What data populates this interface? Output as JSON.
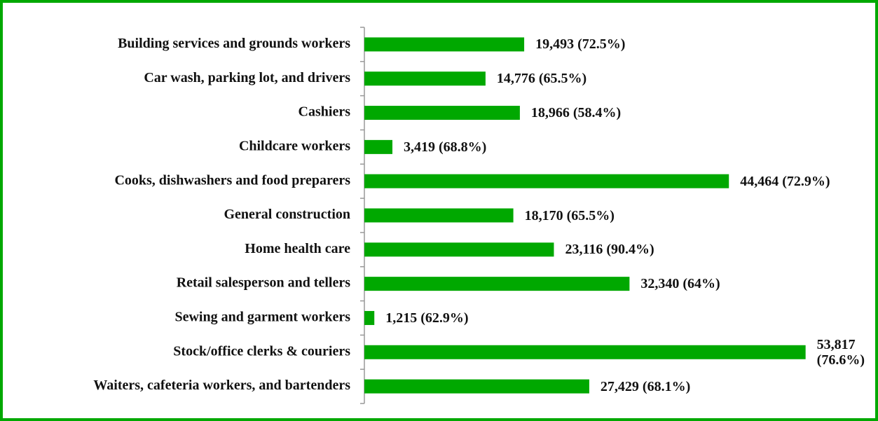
{
  "chart_data": {
    "type": "bar",
    "orientation": "horizontal",
    "categories": [
      "Building services and grounds workers",
      "Car wash, parking lot, and drivers",
      "Cashiers",
      "Childcare workers",
      "Cooks, dishwashers and food preparers",
      "General construction",
      "Home health care",
      "Retail salesperson and tellers",
      "Sewing and garment workers",
      "Stock/office clerks & couriers",
      "Waiters, cafeteria workers, and bartenders"
    ],
    "values": [
      19493,
      14776,
      18966,
      3419,
      44464,
      18170,
      23116,
      32340,
      1215,
      53817,
      27429
    ],
    "value_labels": [
      "19,493 (72.5%)",
      "14,776 (65.5%)",
      "18,966 (58.4%)",
      "3,419 (68.8%)",
      "44,464 (72.9%)",
      "18,170 (65.5%)",
      "23,116 (90.4%)",
      "32,340 (64%)",
      "1,215 (62.9%)",
      "53,817 (76.6%)",
      "27,429 (68.1%)"
    ],
    "color": "#00a800",
    "xlim": [
      0,
      60000
    ],
    "grid": false
  }
}
